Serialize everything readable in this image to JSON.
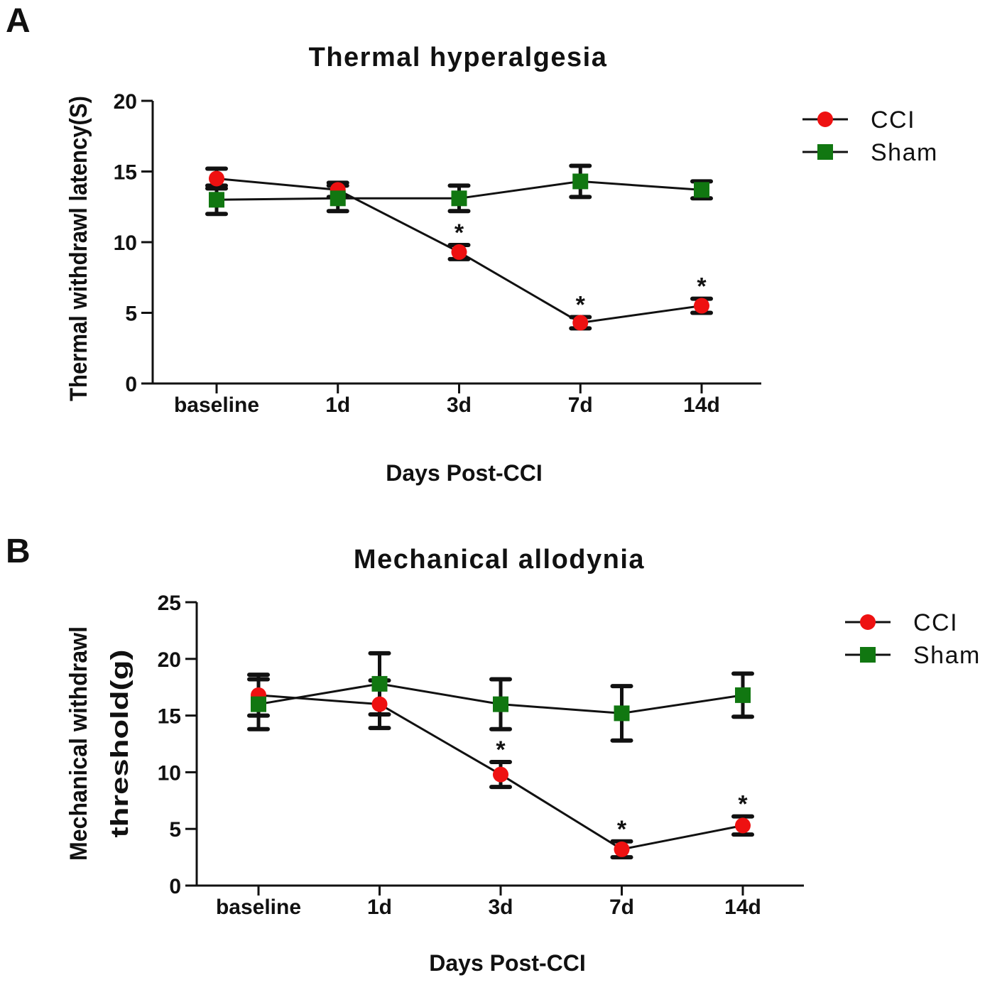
{
  "chart_data": [
    {
      "type": "line",
      "panel": "A",
      "title": "Thermal hyperalgesia",
      "xlabel": "Days Post-CCI",
      "ylabel": [
        "Thermal withdrawl latency(S)"
      ],
      "ylim": [
        0,
        20
      ],
      "yticks": [
        0,
        5,
        10,
        15,
        20
      ],
      "categories": [
        "baseline",
        "1d",
        "3d",
        "7d",
        "14d"
      ],
      "grid": false,
      "legend_position": "top-right",
      "series": [
        {
          "name": "CCI",
          "marker": "circle",
          "color": "#ee1111",
          "values": [
            14.5,
            13.7,
            9.3,
            4.3,
            5.5
          ],
          "error": [
            0.7,
            0.5,
            0.5,
            0.4,
            0.5
          ],
          "significance": [
            "",
            "",
            "*",
            "*",
            "*"
          ]
        },
        {
          "name": "Sham",
          "marker": "square",
          "color": "#117711",
          "values": [
            13.0,
            13.1,
            13.1,
            14.3,
            13.7
          ],
          "error": [
            1.0,
            0.9,
            0.9,
            1.1,
            0.6
          ],
          "significance": [
            "",
            "",
            "",
            "",
            ""
          ]
        }
      ]
    },
    {
      "type": "line",
      "panel": "B",
      "title": "Mechanical allodynia",
      "xlabel": "Days Post-CCI",
      "ylabel": [
        "Mechanical withdrawl",
        "threshold(g)"
      ],
      "ylim": [
        0,
        25
      ],
      "yticks": [
        0,
        5,
        10,
        15,
        20,
        25
      ],
      "categories": [
        "baseline",
        "1d",
        "3d",
        "7d",
        "14d"
      ],
      "grid": false,
      "legend_position": "top-right",
      "series": [
        {
          "name": "CCI",
          "marker": "circle",
          "color": "#ee1111",
          "values": [
            16.8,
            16.0,
            9.8,
            3.2,
            5.3
          ],
          "error": [
            1.8,
            2.1,
            1.1,
            0.7,
            0.8
          ],
          "significance": [
            "",
            "",
            "*",
            "*",
            "*"
          ]
        },
        {
          "name": "Sham",
          "marker": "square",
          "color": "#117711",
          "values": [
            16.0,
            17.8,
            16.0,
            15.2,
            16.8
          ],
          "error": [
            2.2,
            2.7,
            2.2,
            2.4,
            1.9
          ],
          "significance": [
            "",
            "",
            "",
            "",
            ""
          ]
        }
      ]
    }
  ]
}
